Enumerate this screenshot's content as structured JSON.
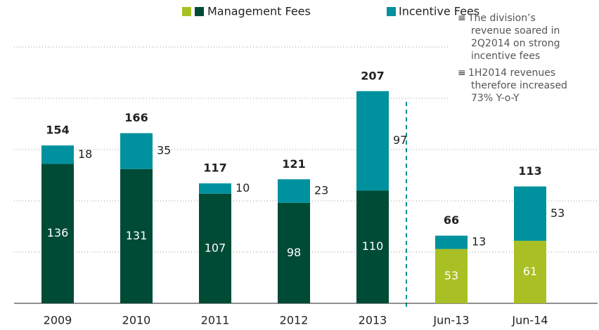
{
  "chart_data": {
    "type": "stacked_bar",
    "categories": [
      "2009",
      "2010",
      "2011",
      "2012",
      "2013",
      "Jun-13",
      "Jun-14"
    ],
    "series": [
      {
        "name": "Management Fees",
        "color": "#004b35",
        "colors": [
          "#004b35",
          "#004b35",
          "#004b35",
          "#004b35",
          "#004b35",
          "#a8c023",
          "#a8c023"
        ],
        "values": [
          136,
          131,
          107,
          98,
          110,
          53,
          61
        ]
      },
      {
        "name": "Incentive Fees",
        "color": "#00919e",
        "values": [
          18,
          35,
          10,
          23,
          97,
          13,
          53
        ]
      }
    ],
    "totals": [
      154,
      166,
      117,
      121,
      207,
      66,
      113
    ],
    "legend_extra_color": "#a8c023",
    "ylim": [
      0,
      250
    ],
    "yticks": [
      50,
      100,
      150,
      200,
      250
    ],
    "grid": true,
    "show_ytick_labels": false,
    "annotations": [
      {
        "marker": "≡",
        "lines": [
          "The division’s",
          "revenue soared in",
          "2Q2014 on strong",
          "incentive fees"
        ]
      },
      {
        "marker": "≡",
        "lines": [
          "1H2014  revenues",
          "therefore increased",
          "73% Y-o-Y"
        ]
      }
    ]
  }
}
